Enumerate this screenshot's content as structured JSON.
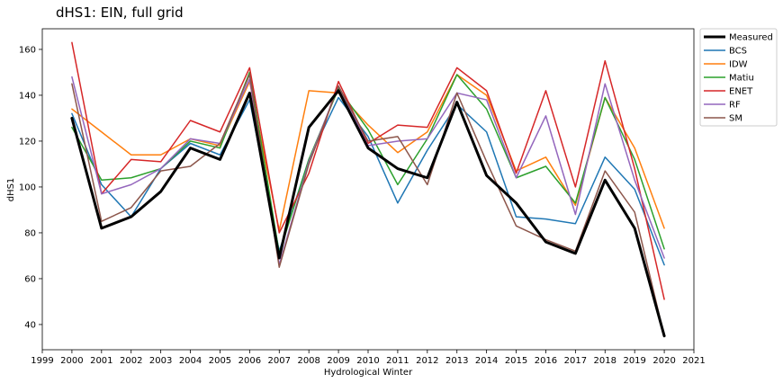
{
  "chart_data": {
    "type": "line",
    "title": "dHS1: EIN, full grid",
    "xlabel": "Hydrological Winter",
    "ylabel": "dHS1",
    "xlim": [
      1999,
      2021
    ],
    "ylim": [
      29,
      169
    ],
    "x_ticks": [
      1999,
      2000,
      2001,
      2002,
      2003,
      2004,
      2005,
      2006,
      2007,
      2008,
      2009,
      2010,
      2011,
      2012,
      2013,
      2014,
      2015,
      2016,
      2017,
      2018,
      2019,
      2020,
      2021
    ],
    "y_ticks": [
      40,
      60,
      80,
      100,
      120,
      140,
      160
    ],
    "grid": false,
    "legend_position": "outside-right",
    "x": [
      2000,
      2001,
      2002,
      2003,
      2004,
      2005,
      2006,
      2007,
      2008,
      2009,
      2010,
      2011,
      2012,
      2013,
      2014,
      2015,
      2016,
      2017,
      2018,
      2019,
      2020
    ],
    "series": [
      {
        "name": "Measured",
        "color": "#000000",
        "width": 3,
        "values": [
          130,
          82,
          87,
          98,
          117,
          112,
          141,
          69,
          126,
          142,
          117,
          108,
          104,
          137,
          105,
          93,
          76,
          71,
          103,
          82,
          35
        ]
      },
      {
        "name": "BCS",
        "color": "#1f77b4",
        "width": 1.5,
        "values": [
          132,
          101,
          87,
          108,
          119,
          114,
          138,
          72,
          112,
          139,
          122,
          93,
          116,
          136,
          124,
          87,
          86,
          84,
          113,
          99,
          66
        ]
      },
      {
        "name": "IDW",
        "color": "#ff7f0e",
        "width": 1.5,
        "values": [
          134,
          124,
          114,
          114,
          121,
          118,
          146,
          81,
          142,
          141,
          127,
          115,
          124,
          149,
          140,
          107,
          113,
          92,
          139,
          117,
          82
        ]
      },
      {
        "name": "Matiu",
        "color": "#2ca02c",
        "width": 1.5,
        "values": [
          126,
          103,
          104,
          108,
          120,
          117,
          150,
          71,
          112,
          143,
          125,
          101,
          121,
          149,
          134,
          104,
          109,
          93,
          139,
          112,
          73
        ]
      },
      {
        "name": "ENET",
        "color": "#d62728",
        "width": 1.5,
        "values": [
          163,
          97,
          112,
          111,
          129,
          124,
          152,
          80,
          106,
          146,
          119,
          127,
          126,
          152,
          142,
          106,
          142,
          100,
          155,
          108,
          51
        ]
      },
      {
        "name": "RF",
        "color": "#9467bd",
        "width": 1.5,
        "values": [
          148,
          97,
          101,
          108,
          121,
          119,
          147,
          66,
          111,
          144,
          118,
          120,
          121,
          141,
          138,
          104,
          131,
          88,
          145,
          103,
          69
        ]
      },
      {
        "name": "SM",
        "color": "#8c564b",
        "width": 1.5,
        "values": [
          145,
          85,
          91,
          107,
          109,
          119,
          149,
          65,
          110,
          144,
          120,
          122,
          101,
          141,
          111,
          83,
          77,
          72,
          107,
          89,
          35
        ]
      }
    ]
  }
}
